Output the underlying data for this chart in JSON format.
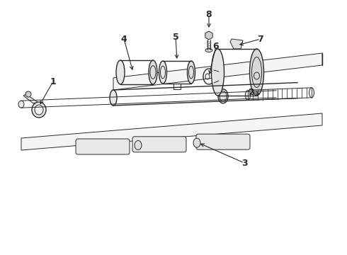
{
  "bg_color": "#ffffff",
  "line_color": "#2a2a2a",
  "fig_width": 4.9,
  "fig_height": 3.6,
  "dpi": 100,
  "slope": -0.13,
  "label_fontsize": 9
}
